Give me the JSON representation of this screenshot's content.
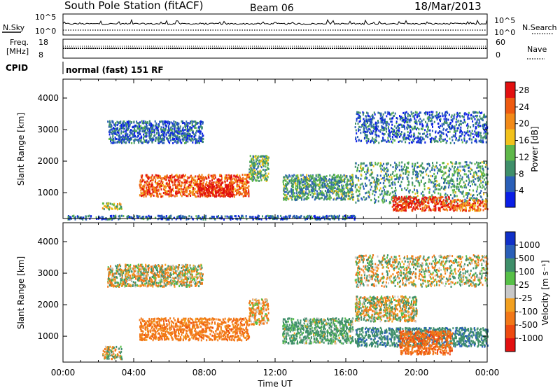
{
  "header": {
    "station": "South Pole Station (fitACF)",
    "beam": "Beam 06",
    "date": "18/Mar/2013"
  },
  "noise_panel": {
    "left_label": "N.Sky",
    "right_label": "N.Search",
    "left_ticks": [
      "10^5",
      "10^0"
    ],
    "right_ticks": [
      "10^5",
      "10^0"
    ]
  },
  "freq_panel": {
    "left_label_line1": "Freq.",
    "left_label_line2": "[MHz]",
    "right_label": "Nave",
    "left_ticks": [
      "18",
      "8"
    ],
    "right_ticks": [
      "60",
      "0"
    ]
  },
  "cpid": {
    "label": "CPID",
    "value": "normal (fast) 151 RF"
  },
  "chart_data": [
    {
      "type": "heatmap",
      "title": "Power",
      "xlabel": "",
      "ylabel": "Slant Range [km]",
      "xlim": [
        "00:00",
        "24:00"
      ],
      "ylim": [
        180,
        4600
      ],
      "y_ticks": [
        1000,
        2000,
        3000,
        4000
      ],
      "colorbar": {
        "label": "Power [dB]",
        "ticks": [
          4,
          8,
          12,
          16,
          20,
          24,
          28
        ],
        "range": [
          0,
          30
        ],
        "colors": [
          "#0a1ee6",
          "#2a5fb8",
          "#3f8f6a",
          "#5fb84a",
          "#f2c21c",
          "#f28a18",
          "#ee5a10",
          "#e21010"
        ]
      },
      "echo_regions": [
        {
          "t_start": 4.3,
          "t_end": 10.5,
          "r_start": 900,
          "r_end": 1600,
          "level": 24
        },
        {
          "t_start": 7.6,
          "t_end": 9.6,
          "r_start": 900,
          "r_end": 1300,
          "level": 30
        },
        {
          "t_start": 10.5,
          "t_end": 11.6,
          "r_start": 1400,
          "r_end": 2200,
          "level": 12
        },
        {
          "t_start": 0.2,
          "t_end": 16.5,
          "r_start": 180,
          "r_end": 300,
          "level": 6
        },
        {
          "t_start": 2.2,
          "t_end": 3.3,
          "r_start": 500,
          "r_end": 700,
          "level": 14
        },
        {
          "t_start": 12.4,
          "t_end": 16.4,
          "r_start": 800,
          "r_end": 1600,
          "level": 10
        },
        {
          "t_start": 16.5,
          "t_end": 24.0,
          "r_start": 700,
          "r_end": 2000,
          "level": 10
        },
        {
          "t_start": 18.6,
          "t_end": 22.0,
          "r_start": 450,
          "r_end": 900,
          "level": 26
        },
        {
          "t_start": 22.0,
          "t_end": 24.0,
          "r_start": 450,
          "r_end": 800,
          "level": 22
        },
        {
          "t_start": 2.5,
          "t_end": 7.9,
          "r_start": 2600,
          "r_end": 3300,
          "level": 6
        },
        {
          "t_start": 16.5,
          "t_end": 24.0,
          "r_start": 2600,
          "r_end": 3600,
          "level": 6
        }
      ]
    },
    {
      "type": "heatmap",
      "title": "Velocity",
      "xlabel": "Time UT",
      "ylabel": "Slant Range [km]",
      "xlim": [
        "00:00",
        "24:00"
      ],
      "ylim": [
        180,
        4600
      ],
      "x_ticks": [
        "00:00",
        "04:00",
        "08:00",
        "12:00",
        "16:00",
        "20:00",
        "00:00"
      ],
      "y_ticks": [
        1000,
        2000,
        3000,
        4000
      ],
      "colorbar": {
        "label": "Velocity [m s⁻¹]",
        "ticks": [
          "1000",
          "500",
          "100",
          "25",
          "-25",
          "-100",
          "-500",
          "-1000"
        ],
        "colors": [
          "#1030c8",
          "#2a5fb8",
          "#3f8f6a",
          "#57c048",
          "#c8c8c8",
          "#f2a020",
          "#f27818",
          "#ee4a10",
          "#e21010"
        ]
      },
      "echo_regions": [
        {
          "t_start": 4.3,
          "t_end": 10.5,
          "r_start": 900,
          "r_end": 1600,
          "v": -300
        },
        {
          "t_start": 10.5,
          "t_end": 11.6,
          "r_start": 1400,
          "r_end": 2200,
          "v": -150
        },
        {
          "t_start": 2.2,
          "t_end": 3.3,
          "r_start": 300,
          "r_end": 700,
          "v": 0
        },
        {
          "t_start": 12.4,
          "t_end": 16.4,
          "r_start": 800,
          "r_end": 1600,
          "v": 200
        },
        {
          "t_start": 16.5,
          "t_end": 24.0,
          "r_start": 700,
          "r_end": 1300,
          "v": 400
        },
        {
          "t_start": 19.0,
          "t_end": 22.0,
          "r_start": 450,
          "r_end": 1200,
          "v": -400
        },
        {
          "t_start": 16.5,
          "t_end": 20.0,
          "r_start": 1500,
          "r_end": 2300,
          "v": 0
        },
        {
          "t_start": 2.5,
          "t_end": 7.9,
          "r_start": 2600,
          "r_end": 3300,
          "v": 0
        },
        {
          "t_start": 16.5,
          "t_end": 24.0,
          "r_start": 2600,
          "r_end": 3600,
          "v": 0
        }
      ]
    }
  ]
}
